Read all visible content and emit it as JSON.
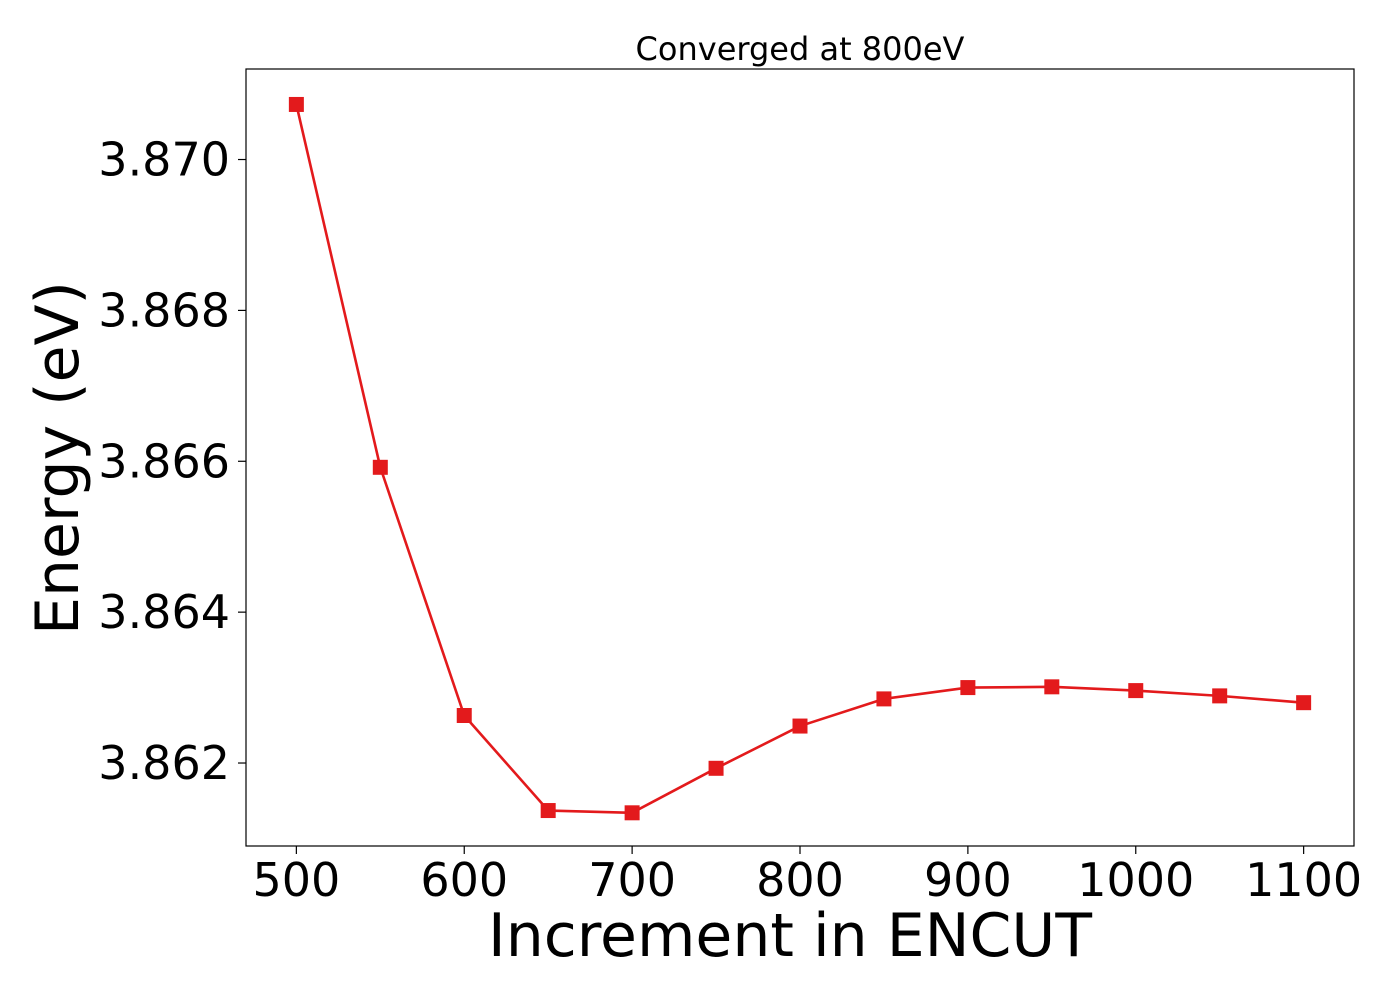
{
  "chart_data": {
    "type": "line",
    "title": "Converged at 800eV",
    "xlabel": "Increment in ENCUT",
    "ylabel": "Energy (eV)",
    "xlim": [
      470,
      1130
    ],
    "ylim": [
      3.8609,
      3.8712
    ],
    "x_ticks": [
      500,
      600,
      700,
      800,
      900,
      1000,
      1100
    ],
    "y_ticks": [
      3.862,
      3.864,
      3.866,
      3.868,
      3.87
    ],
    "y_tick_labels": [
      "3.862",
      "3.864",
      "3.866",
      "3.868",
      "3.870"
    ],
    "grid": false,
    "series": [
      {
        "color": "#e31a1c",
        "marker": "square",
        "x": [
          500,
          550,
          600,
          650,
          700,
          750,
          800,
          850,
          900,
          950,
          1000,
          1050,
          1100
        ],
        "y": [
          3.87073,
          3.86592,
          3.86263,
          3.86137,
          3.86134,
          3.86193,
          3.86249,
          3.86285,
          3.863,
          3.86301,
          3.86296,
          3.86289,
          3.8628
        ]
      }
    ]
  }
}
